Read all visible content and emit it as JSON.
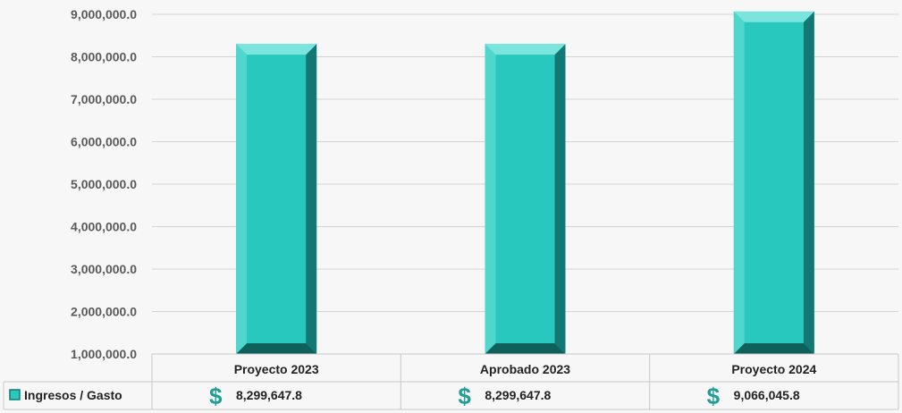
{
  "chart_data": {
    "type": "bar",
    "categories": [
      "Proyecto 2023",
      "Aprobado 2023",
      "Proyecto 2024"
    ],
    "series": [
      {
        "name": "Ingresos / Gasto",
        "values": [
          8299647.8,
          8299647.8,
          9066045.8
        ]
      }
    ],
    "table_values": [
      "8,299,647.8",
      "8,299,647.8",
      "9,066,045.8"
    ],
    "currency_symbol": "$",
    "y_ticks": [
      "1,000,000.0",
      "2,000,000.0",
      "3,000,000.0",
      "4,000,000.0",
      "5,000,000.0",
      "6,000,000.0",
      "7,000,000.0",
      "8,000,000.0",
      "9,000,000.0"
    ],
    "ylim": [
      1000000,
      9000000
    ],
    "grid": true,
    "legend_placement": "data-table",
    "colors": {
      "bar_face": "#29c8be",
      "bar_top": "#7ae4dd",
      "bar_left": "#4fd6cd",
      "bar_right": "#137873",
      "bar_bottom": "#0f5f5b",
      "dollar": "#1f9e97",
      "grid": "#d4d4d4",
      "table_border": "#c9c9c9"
    }
  }
}
